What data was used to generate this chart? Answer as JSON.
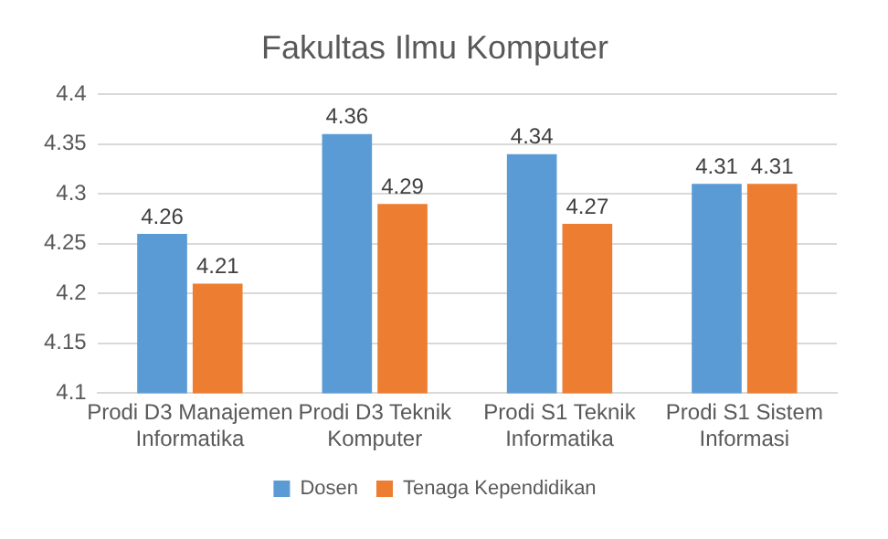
{
  "chart_data": {
    "type": "bar",
    "title": "Fakultas Ilmu Komputer",
    "categories": [
      "Prodi D3 Manajemen Informatika",
      "Prodi D3 Teknik Komputer",
      "Prodi S1 Teknik Informatika",
      "Prodi S1 Sistem Informasi"
    ],
    "series": [
      {
        "name": "Dosen",
        "color": "#5b9bd5",
        "values": [
          4.26,
          4.36,
          4.34,
          4.31
        ]
      },
      {
        "name": "Tenaga Kependidikan",
        "color": "#ed7d31",
        "values": [
          4.21,
          4.29,
          4.27,
          4.31
        ]
      }
    ],
    "ylim": [
      4.1,
      4.4
    ],
    "yticks": [
      4.1,
      4.15,
      4.2,
      4.25,
      4.3,
      4.35,
      4.4
    ],
    "grid": "y",
    "legend": "bottom",
    "data_labels": true
  }
}
